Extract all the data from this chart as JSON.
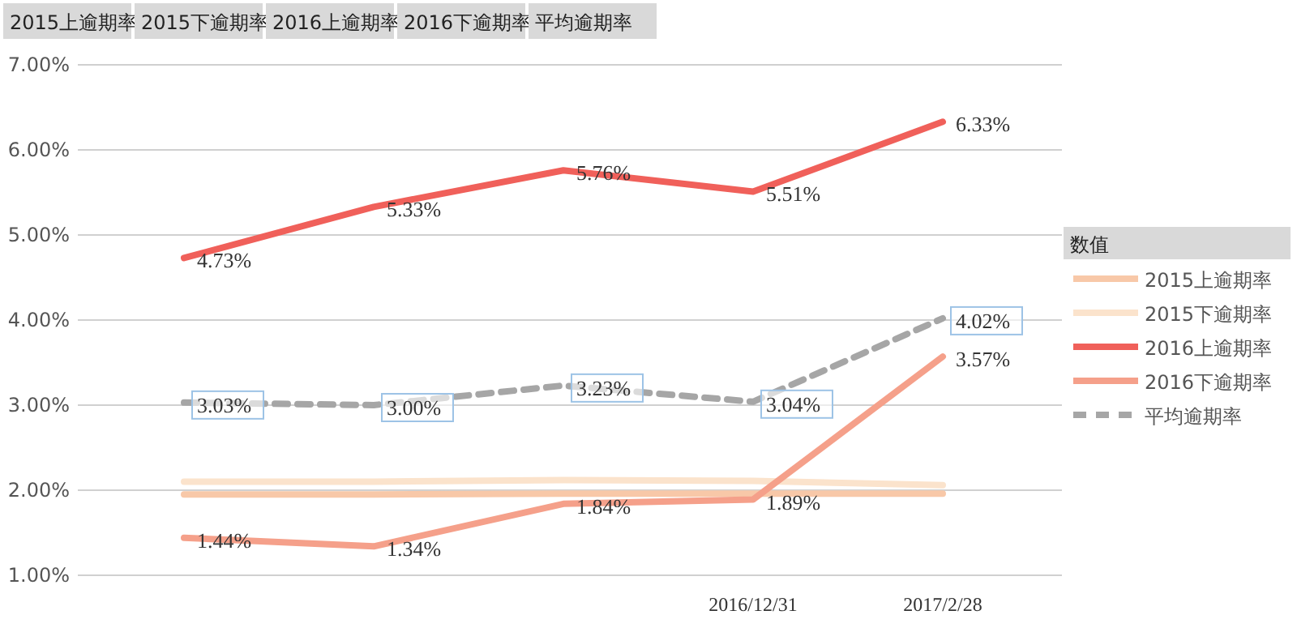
{
  "chart_data": {
    "type": "line",
    "categories": [
      null,
      null,
      null,
      "2016/12/31",
      "2017/2/28"
    ],
    "ylim": [
      1,
      7
    ],
    "yticks": [
      {
        "value": 1,
        "label": "1.00%"
      },
      {
        "value": 2,
        "label": "2.00%"
      },
      {
        "value": 3,
        "label": "3.00%"
      },
      {
        "value": 4,
        "label": "4.00%"
      },
      {
        "value": 5,
        "label": "5.00%"
      },
      {
        "value": 6,
        "label": "6.00%"
      },
      {
        "value": 7,
        "label": "7.00%"
      }
    ],
    "grid": "y",
    "legend": "right",
    "legend_title": "数值",
    "marker": "none",
    "annotations": [
      "2015上逾期率",
      "2015下逾期率",
      "2016上逾期率",
      "2016下逾期率",
      "平均逾期率"
    ],
    "series": [
      {
        "name": "2015上逾期率",
        "color": "#f8c8a8",
        "values": [
          1.95,
          1.95,
          1.96,
          1.96,
          1.96
        ],
        "line_style": "solid"
      },
      {
        "name": "2015下逾期率",
        "color": "#fbe3cc",
        "values": [
          2.1,
          2.1,
          2.12,
          2.11,
          2.06
        ],
        "line_style": "solid"
      },
      {
        "name": "2016上逾期率",
        "color": "#f0605a",
        "values": [
          4.73,
          5.33,
          5.76,
          5.51,
          6.33
        ],
        "line_style": "solid",
        "value_labels": [
          "4.73%",
          "5.33%",
          "5.76%",
          "5.51%",
          "6.33%"
        ]
      },
      {
        "name": "2016下逾期率",
        "color": "#f5a08a",
        "values": [
          1.44,
          1.34,
          1.84,
          1.89,
          3.57
        ],
        "line_style": "solid",
        "value_labels": [
          "1.44%",
          "1.34%",
          "1.84%",
          "1.89%",
          "3.57%"
        ]
      },
      {
        "name": "平均逾期率",
        "color": "#a6a6a6",
        "values": [
          3.03,
          3.0,
          3.23,
          3.04,
          4.02
        ],
        "line_style": "dashed",
        "value_labels": [
          "3.03%",
          "3.00%",
          "3.23%",
          "3.04%",
          "4.02%"
        ]
      }
    ]
  }
}
